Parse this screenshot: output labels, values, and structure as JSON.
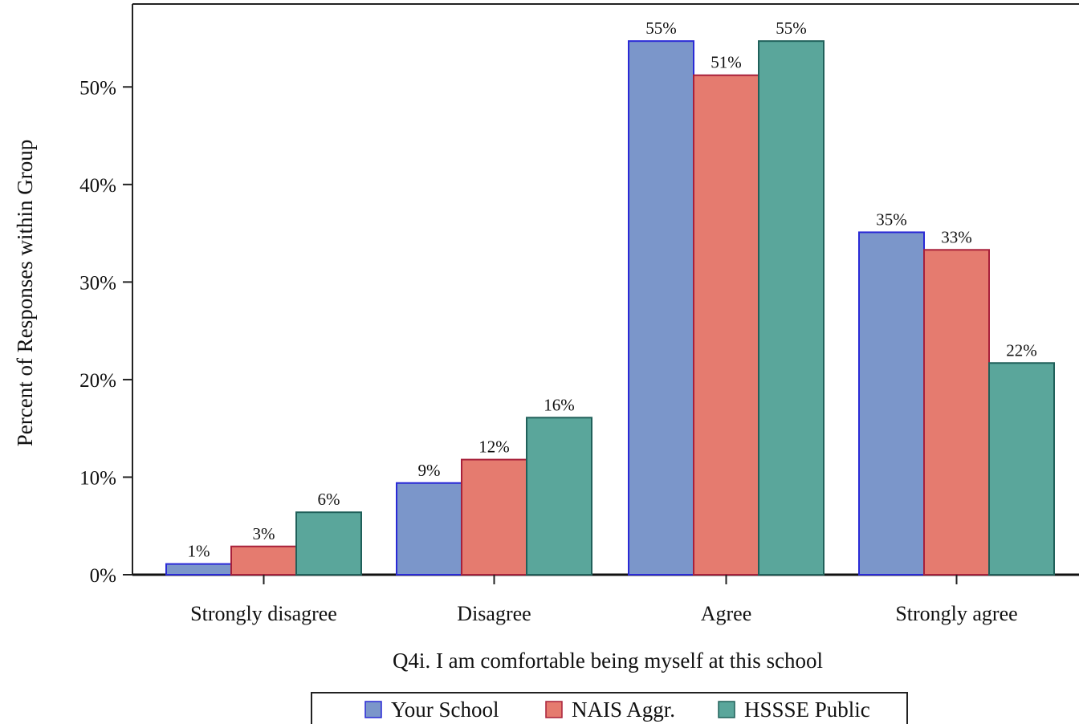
{
  "chart_data": {
    "type": "bar",
    "categories": [
      "Strongly disagree",
      "Disagree",
      "Agree",
      "Strongly agree"
    ],
    "series": [
      {
        "name": "Your School",
        "values": [
          1,
          9,
          55,
          35
        ],
        "labels": [
          "1%",
          "9%",
          "55%",
          "35%"
        ],
        "color": "#7b96ca",
        "stroke": "#2a2ad6"
      },
      {
        "name": "NAIS Aggr.",
        "values": [
          3,
          12,
          51,
          33
        ],
        "labels": [
          "3%",
          "12%",
          "51%",
          "33%"
        ],
        "color": "#e57b6f",
        "stroke": "#a8203a"
      },
      {
        "name": "HSSSE Public",
        "values": [
          6,
          16,
          55,
          22
        ],
        "labels": [
          "6%",
          "16%",
          "55%",
          "22%"
        ],
        "color": "#5aa69b",
        "stroke": "#20605a"
      }
    ],
    "plotted_values": [
      [
        1.1,
        9.4,
        54.7,
        35.1
      ],
      [
        2.9,
        11.8,
        51.2,
        33.3
      ],
      [
        6.4,
        16.1,
        54.7,
        21.7
      ]
    ],
    "yticks": [
      0,
      10,
      20,
      30,
      40,
      50
    ],
    "ytick_labels": [
      "0%",
      "10%",
      "20%",
      "30%",
      "40%",
      "50%"
    ],
    "ylim": [
      0,
      58.5
    ],
    "xlabel": "Q4i. I am comfortable being myself at this school",
    "ylabel": "Percent of Responses within Group",
    "legend_position": "bottom",
    "grid": false
  }
}
